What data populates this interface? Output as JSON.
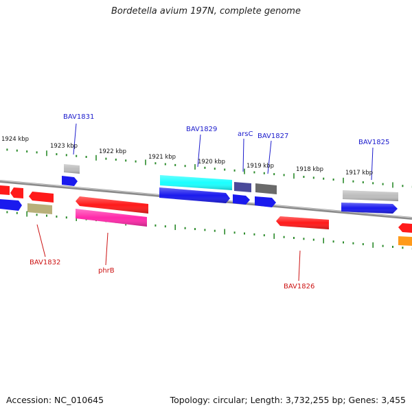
{
  "title": "Bordetella avium 197N, complete genome",
  "footer": {
    "accession": "Accession: NC_010645",
    "summary": "Topology: circular; Length: 3,732,255 bp; Genes: 3,455"
  },
  "ticks": [
    "1924 kbp",
    "1923 kbp",
    "1922 kbp",
    "1921 kbp",
    "1920 kbp",
    "1919 kbp",
    "1918 kbp",
    "1917 kbp"
  ],
  "gene_labels_top": [
    "BAV1831",
    "BAV1829",
    "arsC",
    "BAV1827",
    "BAV1825"
  ],
  "gene_labels_bottom": [
    "BAV1832",
    "phrB",
    "BAV1826"
  ],
  "colors": {
    "forward_label": "#1a1acc",
    "reverse_label": "#cc1111",
    "backbone": "#8a8a8a",
    "tick": "#2a8a2a",
    "red": "#ff1a1a",
    "blue": "#1a1aee",
    "cyan": "#1affff",
    "gray": "#bdbdbd",
    "darkgray": "#6a6a6a",
    "navy": "#4a4a9a",
    "olive": "#b8b07a",
    "magenta": "#ff2aaa",
    "orange": "#ff9a1a"
  }
}
